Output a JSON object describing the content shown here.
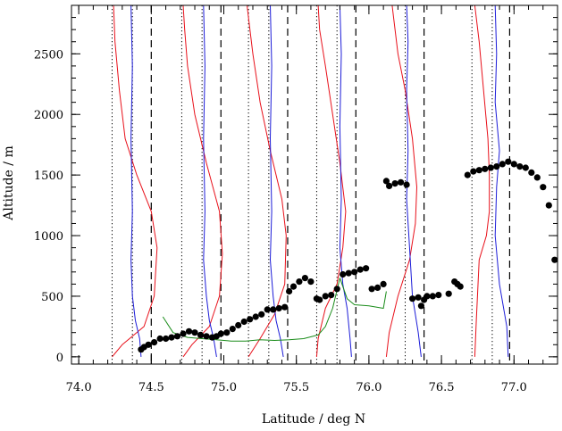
{
  "chart_data": {
    "type": "scatter",
    "title": "",
    "xlabel": "Latitude / deg N",
    "ylabel": "Altitude / m",
    "xlim": [
      73.95,
      77.3
    ],
    "ylim": [
      -60,
      2900
    ],
    "x_ticks": [
      74.0,
      74.5,
      75.0,
      75.5,
      76.0,
      76.5,
      77.0
    ],
    "x_tick_labels": [
      "74.0",
      "74.5",
      "75.0",
      "75.5",
      "76.0",
      "76.5",
      "77.0"
    ],
    "y_ticks": [
      0,
      500,
      1000,
      1500,
      2000,
      2500
    ],
    "y_tick_labels": [
      "0",
      "500",
      "1000",
      "1500",
      "2000",
      "2500"
    ],
    "grid": false,
    "legend": "none",
    "colors": {
      "red": "#e8101a",
      "blue": "#1c1cd8",
      "green": "#1a8c1a",
      "black": "#000000"
    },
    "dotted_lines_x": [
      74.23,
      74.37,
      74.71,
      74.85,
      75.17,
      75.31,
      75.64,
      75.78,
      76.25,
      76.71,
      76.85
    ],
    "dashed_lines_x": [
      74.5,
      74.98,
      75.44,
      75.91,
      76.38,
      76.97
    ],
    "red_profiles": [
      {
        "x": [
          74.23,
          74.3,
          74.45,
          74.52,
          74.54,
          74.5,
          74.4,
          74.32,
          74.28,
          74.25,
          74.24
        ],
        "y": [
          0,
          100,
          250,
          500,
          900,
          1200,
          1500,
          1800,
          2200,
          2600,
          2900
        ]
      },
      {
        "x": [
          74.72,
          74.78,
          74.9,
          74.97,
          74.99,
          74.97,
          74.88,
          74.8,
          74.75,
          74.73,
          74.72
        ],
        "y": [
          0,
          100,
          250,
          500,
          850,
          1200,
          1600,
          2000,
          2400,
          2700,
          2900
        ]
      },
      {
        "x": [
          75.17,
          75.25,
          75.35,
          75.42,
          75.43,
          75.4,
          75.32,
          75.25,
          75.2,
          75.17,
          75.16
        ],
        "y": [
          0,
          150,
          350,
          600,
          1000,
          1300,
          1700,
          2100,
          2500,
          2800,
          2900
        ]
      },
      {
        "x": [
          75.64,
          75.65,
          75.7,
          75.78,
          75.82,
          75.84,
          75.8,
          75.75,
          75.7,
          75.66,
          75.65
        ],
        "y": [
          0,
          150,
          400,
          600,
          900,
          1200,
          1600,
          2000,
          2400,
          2700,
          2900
        ]
      },
      {
        "x": [
          76.12,
          76.14,
          76.2,
          76.28,
          76.32,
          76.33,
          76.3,
          76.25,
          76.2,
          76.17,
          76.16
        ],
        "y": [
          0,
          200,
          500,
          800,
          1100,
          1400,
          1800,
          2200,
          2500,
          2800,
          2900
        ]
      },
      {
        "x": [
          76.73,
          76.74,
          76.76,
          76.81,
          76.83,
          76.83,
          76.82,
          76.79,
          76.76,
          76.73
        ],
        "y": [
          0,
          300,
          800,
          1000,
          1200,
          1500,
          1800,
          2200,
          2600,
          2900
        ]
      }
    ],
    "blue_profiles": [
      {
        "x": [
          74.43,
          74.42,
          74.39,
          74.37,
          74.36,
          74.37,
          74.36,
          74.37,
          74.36
        ],
        "y": [
          0,
          150,
          300,
          500,
          800,
          1200,
          1800,
          2400,
          2900
        ]
      },
      {
        "x": [
          74.95,
          74.93,
          74.9,
          74.88,
          74.86,
          74.87,
          74.86,
          74.87,
          74.86
        ],
        "y": [
          0,
          150,
          300,
          500,
          800,
          1200,
          1800,
          2400,
          2900
        ]
      },
      {
        "x": [
          75.41,
          75.39,
          75.36,
          75.34,
          75.32,
          75.33,
          75.32,
          75.33,
          75.32
        ],
        "y": [
          0,
          150,
          300,
          500,
          800,
          1200,
          1800,
          2400,
          2900
        ]
      },
      {
        "x": [
          75.88,
          75.87,
          75.85,
          75.82,
          75.8,
          75.81,
          75.8,
          75.81,
          75.8
        ],
        "y": [
          0,
          150,
          400,
          600,
          900,
          1300,
          1900,
          2500,
          2900
        ]
      },
      {
        "x": [
          76.36,
          76.34,
          76.3,
          76.28,
          76.26,
          76.27,
          76.26,
          76.27,
          76.26
        ],
        "y": [
          0,
          200,
          500,
          900,
          1300,
          1700,
          2200,
          2600,
          2900
        ]
      },
      {
        "x": [
          76.96,
          76.95,
          76.9,
          76.87,
          76.88,
          76.9,
          76.87,
          76.88,
          76.87
        ],
        "y": [
          0,
          250,
          600,
          1000,
          1400,
          1700,
          2100,
          2500,
          2900
        ]
      }
    ],
    "green_series": {
      "x": [
        74.58,
        74.65,
        74.75,
        74.85,
        74.95,
        75.05,
        75.15,
        75.25,
        75.35,
        75.45,
        75.55,
        75.65,
        75.7,
        75.75,
        75.8,
        75.85,
        75.9,
        76.0,
        76.1,
        76.12
      ],
      "y": [
        330,
        200,
        160,
        150,
        140,
        130,
        130,
        140,
        135,
        140,
        150,
        180,
        250,
        400,
        650,
        480,
        430,
        420,
        400,
        540
      ]
    },
    "black_points": {
      "x": [
        74.43,
        74.45,
        74.48,
        74.52,
        74.56,
        74.6,
        74.64,
        74.68,
        74.72,
        74.76,
        74.8,
        74.84,
        74.88,
        74.92,
        74.95,
        74.98,
        75.02,
        75.06,
        75.1,
        75.14,
        75.18,
        75.22,
        75.26,
        75.3,
        75.34,
        75.38,
        75.42,
        75.45,
        75.48,
        75.52,
        75.56,
        75.6,
        75.64,
        75.66,
        75.7,
        75.74,
        75.78,
        75.82,
        75.86,
        75.9,
        75.94,
        75.98,
        76.02,
        76.06,
        76.1,
        76.12,
        76.14,
        76.18,
        76.22,
        76.26,
        76.3,
        76.34,
        76.36,
        76.38,
        76.4,
        76.44,
        76.48,
        76.55,
        76.59,
        76.61,
        76.63,
        76.68,
        76.72,
        76.76,
        76.8,
        76.84,
        76.88,
        76.92,
        76.96,
        77.0,
        77.04,
        77.08,
        77.12,
        77.16,
        77.2,
        77.24,
        77.28
      ],
      "y": [
        60,
        80,
        100,
        120,
        150,
        150,
        160,
        170,
        190,
        210,
        200,
        180,
        170,
        160,
        170,
        190,
        200,
        230,
        260,
        290,
        310,
        330,
        350,
        390,
        390,
        400,
        410,
        540,
        580,
        620,
        650,
        620,
        480,
        470,
        500,
        510,
        560,
        680,
        690,
        700,
        720,
        730,
        560,
        570,
        600,
        1450,
        1410,
        1430,
        1440,
        1420,
        480,
        490,
        420,
        470,
        500,
        500,
        510,
        520,
        620,
        600,
        580,
        1500,
        1530,
        1540,
        1550,
        1560,
        1570,
        1590,
        1610,
        1590,
        1570,
        1560,
        1520,
        1480,
        1400,
        1250,
        800
      ]
    }
  }
}
